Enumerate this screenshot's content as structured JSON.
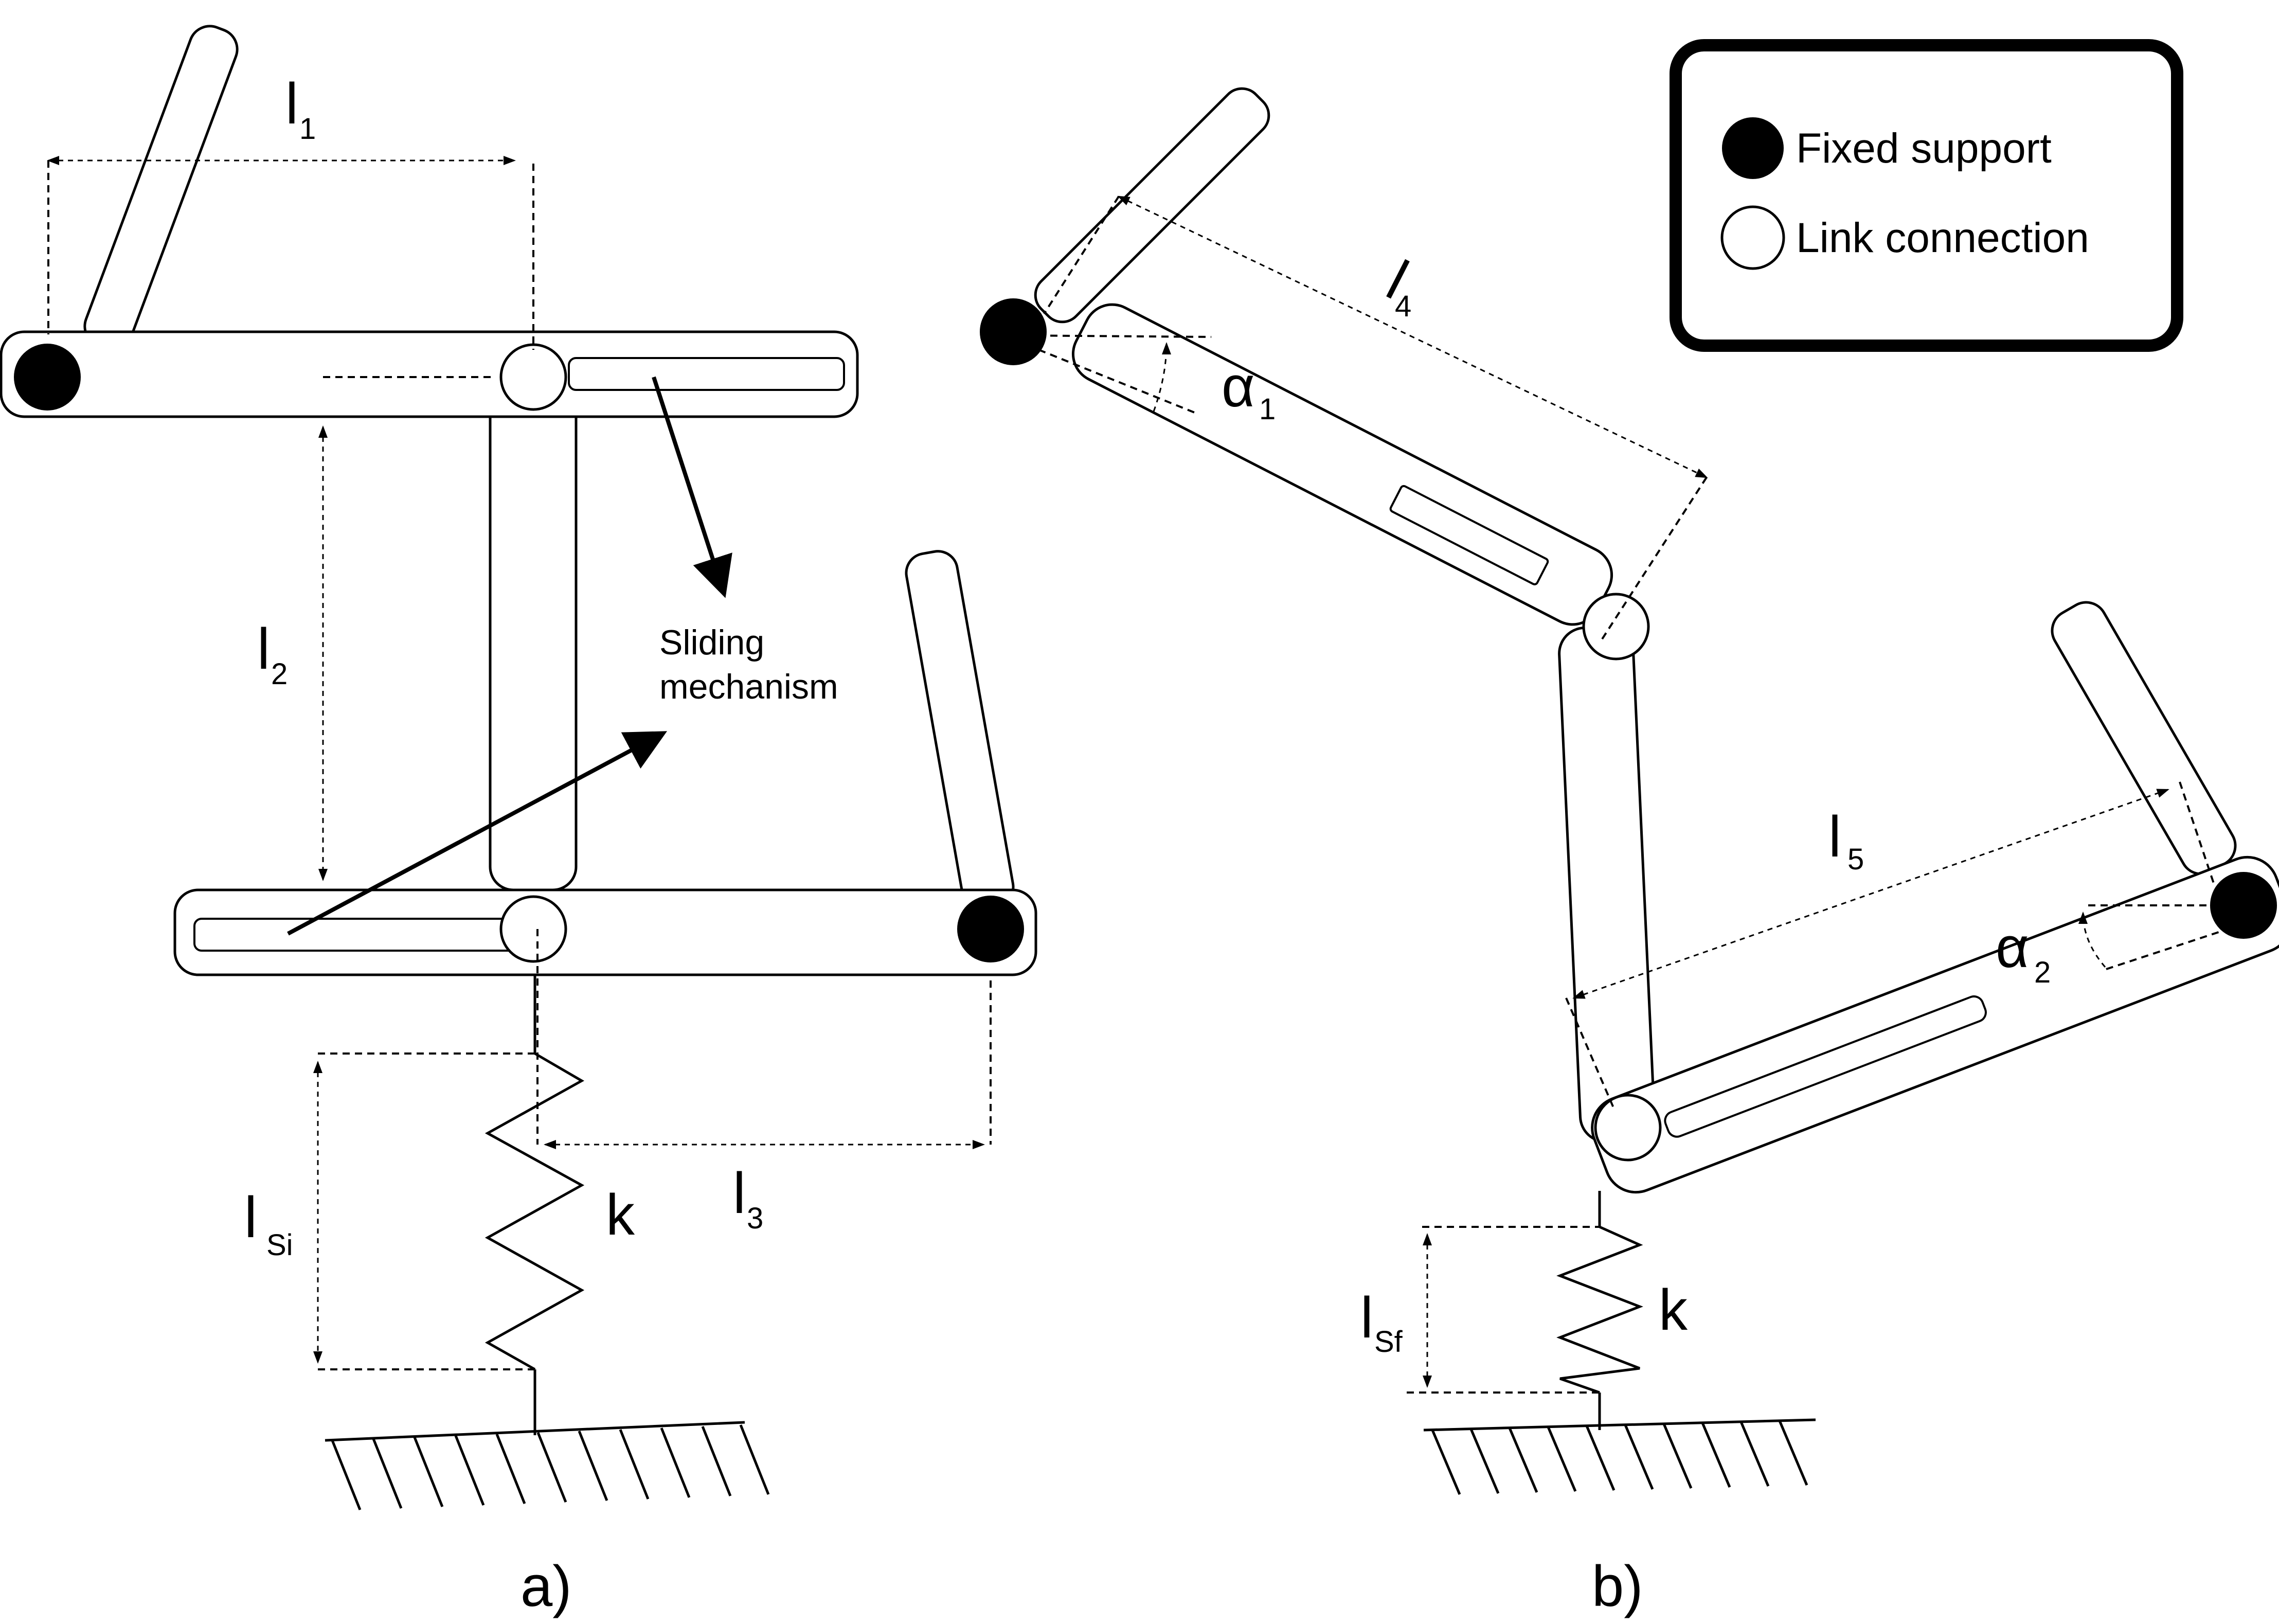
{
  "legend": {
    "items": [
      {
        "symbol": "fixed-support",
        "label": "Fixed support"
      },
      {
        "symbol": "link-connection",
        "label": "Link connection"
      }
    ]
  },
  "panel_a": {
    "caption": "a)",
    "dimensions": {
      "l1": {
        "base": "l",
        "sub": "1"
      },
      "l2": {
        "base": "l",
        "sub": "2"
      },
      "l3": {
        "base": "l",
        "sub": "3"
      },
      "lsi": {
        "base": "l",
        "sub": "Si"
      }
    },
    "spring_label": "k",
    "annotation": {
      "line1": "Sliding",
      "line2": "mechanism"
    }
  },
  "panel_b": {
    "caption": "b)",
    "dimensions": {
      "l4": {
        "base": "l",
        "sub": "4"
      },
      "l5": {
        "base": "l",
        "sub": "5"
      },
      "lsf": {
        "base": "l",
        "sub": "Sf"
      }
    },
    "angles": {
      "a1": {
        "base": "α",
        "sub": "1"
      },
      "a2": {
        "base": "α",
        "sub": "2"
      }
    },
    "spring_label": "k"
  },
  "colors": {
    "stroke": "#000000",
    "background": "#ffffff"
  }
}
